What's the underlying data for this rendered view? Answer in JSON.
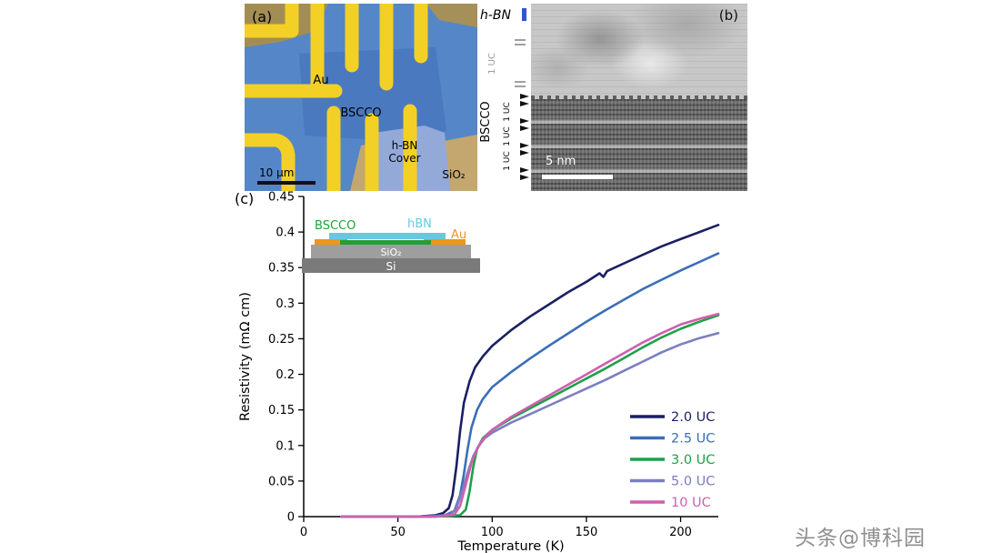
{
  "figure": {
    "watermark": "头条@博科园"
  },
  "panel_a": {
    "label": "(a)",
    "au_label": "Au",
    "bscco_label": "BSCCO",
    "hbn_cover_line1": "h-BN",
    "hbn_cover_line2": "Cover",
    "sio2_label": "SiO₂",
    "scalebar_label": "10 μm"
  },
  "panel_b": {
    "label": "(b)",
    "hbn_label": "h-BN",
    "bscco_label": "BSCCO",
    "uc_gray_label": "1 UC",
    "uc_labels": [
      "1 UC",
      "1 UC",
      "1 UC"
    ],
    "scalebar_label": "5 nm"
  },
  "panel_c": {
    "label": "(c)",
    "inset": {
      "bscco_label": "BSCCO",
      "bscco_color": "#21a038",
      "hbn_label": "hBN",
      "hbn_color": "#66c9de",
      "au_label": "Au",
      "au_color": "#f0941e",
      "sio2_label": "SiO₂",
      "sio2_color": "#9e9e9e",
      "si_label": "Si",
      "si_color": "#7a7a7a"
    }
  },
  "chart_data": {
    "type": "line",
    "title": "",
    "xlabel": "Temperature (K)",
    "ylabel": "Resistivity (mΩ cm)",
    "xlim": [
      0,
      220
    ],
    "ylim": [
      0,
      0.45
    ],
    "xticks": [
      0,
      50,
      100,
      150,
      200
    ],
    "yticks": [
      0,
      0.05,
      0.1,
      0.15,
      0.2,
      0.25,
      0.3,
      0.35,
      0.4,
      0.45
    ],
    "grid": false,
    "legend_position": "lower-right",
    "series": [
      {
        "name": "2.0 UC",
        "color": "#1b1f63",
        "x": [
          20,
          40,
          60,
          70,
          74,
          77,
          79,
          81,
          83,
          85,
          88,
          91,
          95,
          100,
          110,
          120,
          130,
          140,
          150,
          157,
          159,
          161,
          170,
          180,
          190,
          200,
          210,
          220
        ],
        "y": [
          0,
          0,
          0,
          0.002,
          0.005,
          0.012,
          0.03,
          0.07,
          0.12,
          0.16,
          0.19,
          0.21,
          0.225,
          0.24,
          0.262,
          0.281,
          0.298,
          0.315,
          0.33,
          0.342,
          0.337,
          0.345,
          0.356,
          0.368,
          0.38,
          0.39,
          0.4,
          0.41
        ]
      },
      {
        "name": "2.5 UC",
        "color": "#3a6fb7",
        "x": [
          20,
          60,
          75,
          80,
          83,
          85,
          87,
          89,
          92,
          95,
          100,
          110,
          120,
          130,
          140,
          150,
          160,
          170,
          180,
          190,
          200,
          210,
          220
        ],
        "y": [
          0,
          0,
          0.002,
          0.008,
          0.03,
          0.06,
          0.095,
          0.125,
          0.15,
          0.165,
          0.182,
          0.203,
          0.222,
          0.24,
          0.257,
          0.274,
          0.29,
          0.305,
          0.32,
          0.333,
          0.346,
          0.358,
          0.37
        ]
      },
      {
        "name": "3.0 UC",
        "color": "#1ea048",
        "x": [
          20,
          70,
          83,
          86,
          88,
          90,
          92,
          95,
          100,
          110,
          120,
          130,
          140,
          150,
          160,
          170,
          180,
          190,
          200,
          210,
          220
        ],
        "y": [
          0,
          0,
          0.002,
          0.01,
          0.035,
          0.07,
          0.095,
          0.11,
          0.122,
          0.138,
          0.152,
          0.166,
          0.18,
          0.194,
          0.208,
          0.223,
          0.238,
          0.252,
          0.264,
          0.274,
          0.283
        ]
      },
      {
        "name": "5.0 UC",
        "color": "#7b7fc0",
        "x": [
          20,
          70,
          78,
          81,
          84,
          87,
          90,
          93,
          96,
          100,
          110,
          120,
          130,
          140,
          150,
          160,
          170,
          180,
          190,
          200,
          210,
          220
        ],
        "y": [
          0,
          0,
          0.003,
          0.012,
          0.035,
          0.062,
          0.085,
          0.1,
          0.11,
          0.118,
          0.132,
          0.144,
          0.156,
          0.168,
          0.18,
          0.192,
          0.205,
          0.218,
          0.231,
          0.242,
          0.251,
          0.258
        ]
      },
      {
        "name": "10 UC",
        "color": "#cf5fae",
        "x": [
          20,
          70,
          80,
          83,
          86,
          89,
          92,
          95,
          100,
          110,
          120,
          130,
          140,
          150,
          160,
          170,
          180,
          190,
          200,
          210,
          220
        ],
        "y": [
          0,
          0,
          0.003,
          0.015,
          0.045,
          0.075,
          0.095,
          0.108,
          0.122,
          0.14,
          0.155,
          0.17,
          0.185,
          0.2,
          0.215,
          0.23,
          0.245,
          0.258,
          0.27,
          0.278,
          0.285
        ]
      }
    ]
  }
}
